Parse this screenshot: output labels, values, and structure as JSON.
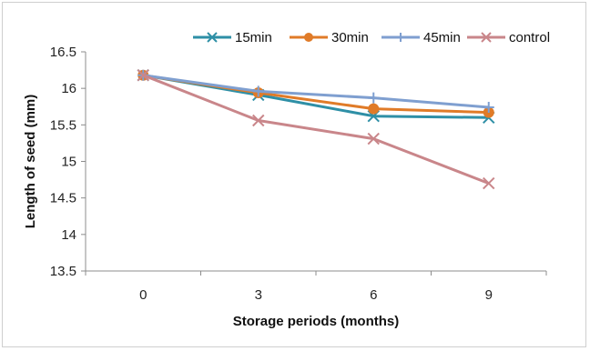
{
  "chart_data": {
    "type": "line",
    "categories": [
      "0",
      "3",
      "6",
      "9"
    ],
    "x": [
      0,
      3,
      6,
      9
    ],
    "series": [
      {
        "name": "15min",
        "values": [
          16.18,
          15.91,
          15.62,
          15.6
        ],
        "color": "#2e8fa6",
        "marker": "x"
      },
      {
        "name": "30min",
        "values": [
          16.18,
          15.94,
          15.72,
          15.67
        ],
        "color": "#e07b28",
        "marker": "circle"
      },
      {
        "name": "45min",
        "values": [
          16.18,
          15.96,
          15.87,
          15.74
        ],
        "color": "#7f9fd0",
        "marker": "plus"
      },
      {
        "name": "control",
        "values": [
          16.18,
          15.56,
          15.31,
          14.7
        ],
        "color": "#c9868a",
        "marker": "x"
      }
    ],
    "xlabel": "Storage periods (months)",
    "ylabel": "Length of seed (mm)",
    "ylim": [
      13.5,
      16.5
    ],
    "yticks": [
      "13.5",
      "14",
      "14.5",
      "15",
      "15.5",
      "16",
      "16.5"
    ],
    "ytick_values": [
      13.5,
      14,
      14.5,
      15,
      15.5,
      16,
      16.5
    ],
    "legend_position": "top-right",
    "grid": false
  }
}
